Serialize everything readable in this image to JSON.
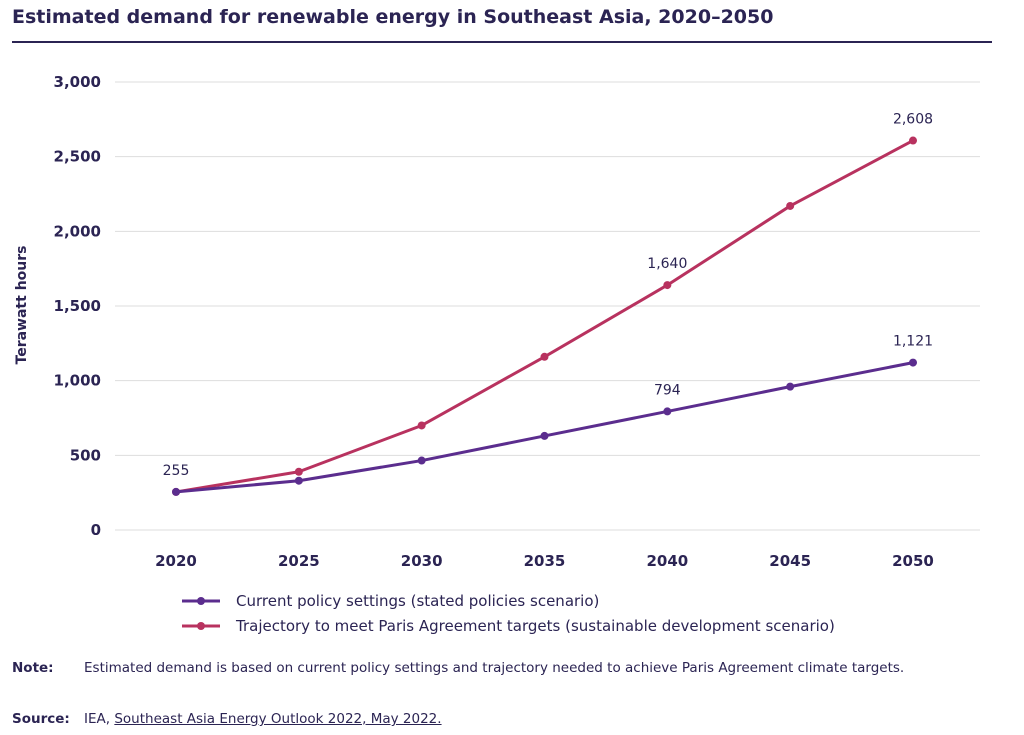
{
  "chart_data": {
    "type": "line",
    "title": "Estimated demand for renewable energy in Southeast Asia, 2020–2050",
    "ylabel": "Terawatt hours",
    "xlabel": "",
    "categories": [
      "2020",
      "2025",
      "2030",
      "2035",
      "2040",
      "2045",
      "2050"
    ],
    "ylim": [
      0,
      3000
    ],
    "yticks": [
      0,
      500,
      1000,
      1500,
      2000,
      2500,
      3000
    ],
    "ytick_labels": [
      "0",
      "500",
      "1,000",
      "1,500",
      "2,000",
      "2,500",
      "3,000"
    ],
    "grid": true,
    "legend_position": "bottom",
    "series": [
      {
        "name": "Current policy settings (stated policies scenario)",
        "color": "#5b2d8e",
        "values": [
          255,
          330,
          465,
          630,
          794,
          960,
          1121
        ],
        "labels": [
          "255",
          "",
          "",
          "",
          "794",
          "",
          "1,121"
        ]
      },
      {
        "name": "Trajectory to meet Paris Agreement targets (sustainable development scenario)",
        "color": "#b8325f",
        "values": [
          255,
          390,
          700,
          1160,
          1640,
          2170,
          2608
        ],
        "labels": [
          "",
          "",
          "",
          "",
          "1,640",
          "",
          "2,608"
        ]
      }
    ]
  },
  "footer": {
    "note_key": "Note:",
    "note_text": "Estimated demand is based on current policy settings and trajectory needed to achieve Paris Agreement climate targets.",
    "source_key": "Source:",
    "source_prefix": "IEA, ",
    "source_link": "Southeast Asia Energy Outlook 2022, May 2022."
  }
}
